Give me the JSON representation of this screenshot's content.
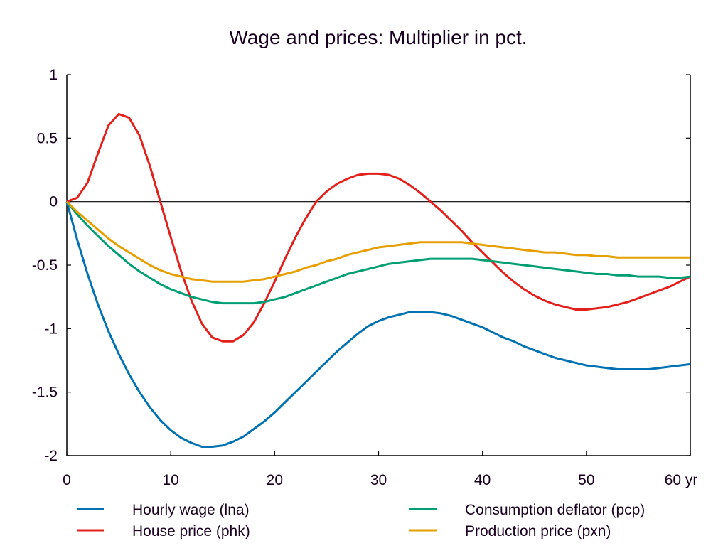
{
  "chart_data": {
    "type": "line",
    "title": "Wage and prices: Multiplier in pct.",
    "xlabel": "",
    "ylabel": "",
    "x_unit": "yr",
    "xlim": [
      0,
      60
    ],
    "ylim": [
      -2,
      1
    ],
    "xticks": [
      0,
      10,
      20,
      30,
      40,
      50,
      60
    ],
    "xtick_labels": [
      "0",
      "10",
      "20",
      "30",
      "40",
      "50",
      "60 yr"
    ],
    "yticks": [
      1,
      0.5,
      0,
      -0.5,
      -1,
      -1.5,
      -2
    ],
    "ytick_labels": [
      "1",
      "0.5",
      "0",
      "-0.5",
      "-1",
      "-1.5",
      "-2"
    ],
    "grid": false,
    "zero_line": true,
    "legend_position": "bottom",
    "x": [
      0,
      1,
      2,
      3,
      4,
      5,
      6,
      7,
      8,
      9,
      10,
      11,
      12,
      13,
      14,
      15,
      16,
      17,
      18,
      19,
      20,
      21,
      22,
      23,
      24,
      25,
      26,
      27,
      28,
      29,
      30,
      31,
      32,
      33,
      34,
      35,
      36,
      37,
      38,
      39,
      40,
      41,
      42,
      43,
      44,
      45,
      46,
      47,
      48,
      49,
      50,
      51,
      52,
      53,
      54,
      55,
      56,
      57,
      58,
      59,
      60
    ],
    "series": [
      {
        "name": "Hourly wage (lna)",
        "color": "#0072b2",
        "values": [
          0,
          -0.3,
          -0.57,
          -0.81,
          -1.02,
          -1.2,
          -1.36,
          -1.5,
          -1.62,
          -1.72,
          -1.8,
          -1.86,
          -1.9,
          -1.93,
          -1.93,
          -1.92,
          -1.89,
          -1.85,
          -1.79,
          -1.73,
          -1.66,
          -1.58,
          -1.5,
          -1.42,
          -1.34,
          -1.26,
          -1.18,
          -1.11,
          -1.04,
          -0.98,
          -0.94,
          -0.91,
          -0.89,
          -0.87,
          -0.87,
          -0.87,
          -0.88,
          -0.9,
          -0.93,
          -0.96,
          -0.99,
          -1.03,
          -1.07,
          -1.1,
          -1.14,
          -1.17,
          -1.2,
          -1.23,
          -1.25,
          -1.27,
          -1.29,
          -1.3,
          -1.31,
          -1.32,
          -1.32,
          -1.32,
          -1.32,
          -1.31,
          -1.3,
          -1.29,
          -1.28
        ]
      },
      {
        "name": "House price (phk)",
        "color": "#e3211c",
        "values": [
          0,
          0.03,
          0.15,
          0.38,
          0.6,
          0.69,
          0.66,
          0.52,
          0.28,
          0.0,
          -0.28,
          -0.55,
          -0.78,
          -0.96,
          -1.07,
          -1.1,
          -1.1,
          -1.05,
          -0.95,
          -0.8,
          -0.63,
          -0.45,
          -0.28,
          -0.13,
          0.0,
          0.08,
          0.14,
          0.18,
          0.21,
          0.22,
          0.22,
          0.21,
          0.18,
          0.13,
          0.07,
          0.0,
          -0.07,
          -0.15,
          -0.23,
          -0.32,
          -0.4,
          -0.48,
          -0.56,
          -0.63,
          -0.69,
          -0.74,
          -0.78,
          -0.81,
          -0.83,
          -0.85,
          -0.85,
          -0.84,
          -0.83,
          -0.81,
          -0.79,
          -0.76,
          -0.73,
          -0.7,
          -0.67,
          -0.63,
          -0.59
        ]
      },
      {
        "name": "Consumption deflator (pcp)",
        "color": "#009e73",
        "values": [
          0,
          -0.1,
          -0.19,
          -0.27,
          -0.35,
          -0.42,
          -0.49,
          -0.55,
          -0.6,
          -0.65,
          -0.69,
          -0.72,
          -0.75,
          -0.77,
          -0.79,
          -0.8,
          -0.8,
          -0.8,
          -0.8,
          -0.79,
          -0.77,
          -0.75,
          -0.72,
          -0.69,
          -0.66,
          -0.63,
          -0.6,
          -0.57,
          -0.55,
          -0.53,
          -0.51,
          -0.49,
          -0.48,
          -0.47,
          -0.46,
          -0.45,
          -0.45,
          -0.45,
          -0.45,
          -0.45,
          -0.46,
          -0.47,
          -0.48,
          -0.49,
          -0.5,
          -0.51,
          -0.52,
          -0.53,
          -0.54,
          -0.55,
          -0.56,
          -0.57,
          -0.57,
          -0.58,
          -0.58,
          -0.59,
          -0.59,
          -0.59,
          -0.6,
          -0.6,
          -0.59
        ]
      },
      {
        "name": "Production price (pxn)",
        "color": "#e69f00",
        "values": [
          0,
          -0.08,
          -0.15,
          -0.22,
          -0.29,
          -0.35,
          -0.4,
          -0.45,
          -0.5,
          -0.54,
          -0.57,
          -0.59,
          -0.61,
          -0.62,
          -0.63,
          -0.63,
          -0.63,
          -0.63,
          -0.62,
          -0.61,
          -0.59,
          -0.57,
          -0.55,
          -0.52,
          -0.5,
          -0.47,
          -0.45,
          -0.42,
          -0.4,
          -0.38,
          -0.36,
          -0.35,
          -0.34,
          -0.33,
          -0.32,
          -0.32,
          -0.32,
          -0.32,
          -0.32,
          -0.33,
          -0.34,
          -0.35,
          -0.36,
          -0.37,
          -0.38,
          -0.39,
          -0.4,
          -0.4,
          -0.41,
          -0.42,
          -0.42,
          -0.43,
          -0.43,
          -0.44,
          -0.44,
          -0.44,
          -0.44,
          -0.44,
          -0.44,
          -0.44,
          -0.44
        ]
      }
    ]
  }
}
